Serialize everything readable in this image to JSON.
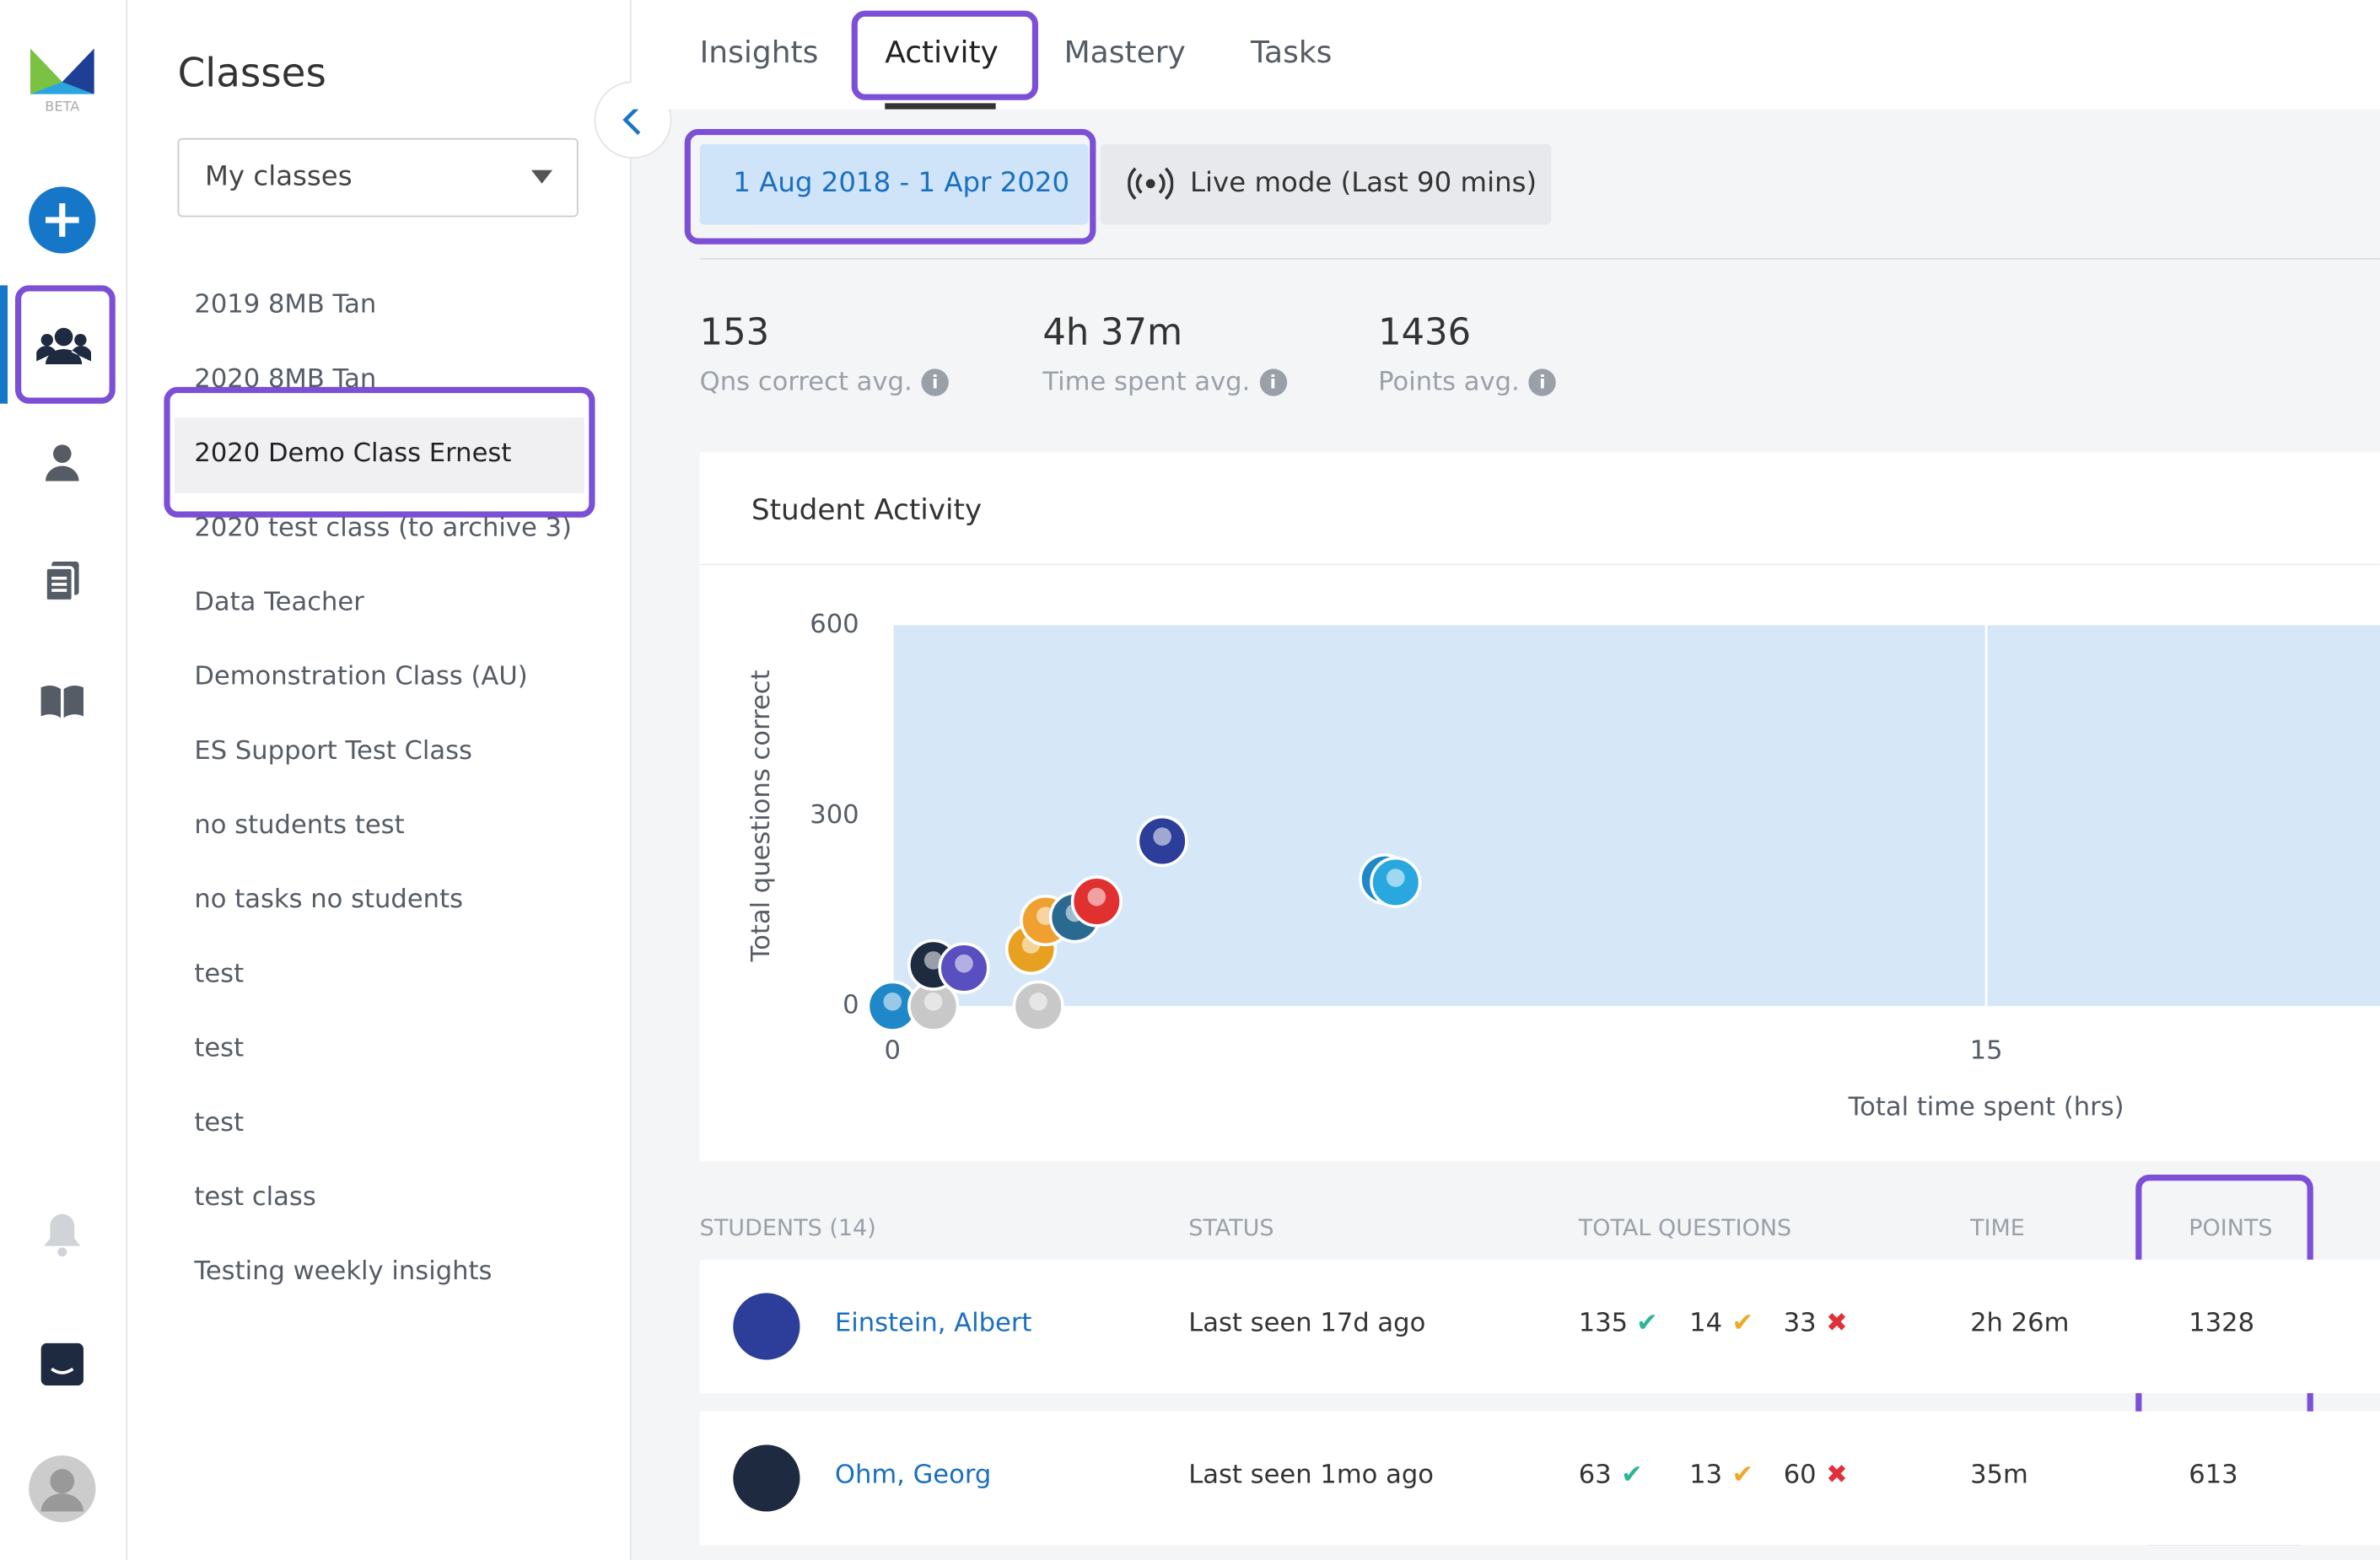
{
  "logo_badge": "BETA",
  "classes_title": "Classes",
  "class_filter": "My classes",
  "classes": [
    "2019 8MB Tan",
    "2020 8MB Tan",
    "2020 Demo Class Ernest",
    "2020 test class (to archive 3)",
    "Data Teacher",
    "Demonstration Class (AU)",
    "ES Support Test Class",
    "no students test",
    "no tasks no students",
    "test",
    "test",
    "test",
    "test class",
    "Testing weekly insights"
  ],
  "tabs": [
    "Insights",
    "Activity",
    "Mastery",
    "Tasks"
  ],
  "date_range": "1 Aug 2018 - 1 Apr 2020",
  "live_mode": "Live mode (Last 90 mins)",
  "stats": [
    {
      "value": 153,
      "label": "Qns correct avg."
    },
    {
      "value": "4h 37m",
      "label": "Time spent avg."
    },
    {
      "value": 1436,
      "label": "Points avg."
    }
  ],
  "chart_data": {
    "type": "scatter",
    "title": "Student Activity",
    "x_label": "Total time spent (hrs)",
    "y_label": "Total questions correct",
    "x": [
      0,
      0.56,
      2.0,
      0.56,
      0.98,
      1.9,
      2.1,
      2.5,
      2.8,
      3.7,
      6.75,
      6.9
    ],
    "y": [
      0,
      0,
      0,
      65,
      60,
      90,
      135,
      140,
      165,
      260,
      200,
      195
    ],
    "xlim": [
      0,
      20.4
    ],
    "ylim": [
      0,
      600
    ],
    "xticks": [
      0,
      15
    ],
    "yticks": [
      0,
      300,
      600
    ],
    "grid": true
  },
  "table": {
    "headers": [
      "STUDENTS (14)",
      "STATUS",
      "TOTAL QUESTIONS",
      "TIME",
      "POINTS"
    ],
    "rows": [
      {
        "name": "Einstein, Albert",
        "status": "Last seen 17d ago",
        "correct": 135,
        "partial": 14,
        "wrong": 33,
        "time": "2h 26m",
        "points": 1328
      },
      {
        "name": "Ohm, Georg",
        "status": "Last seen 1mo ago",
        "correct": 63,
        "partial": 13,
        "wrong": 60,
        "time": "35m",
        "points": 613
      }
    ]
  }
}
